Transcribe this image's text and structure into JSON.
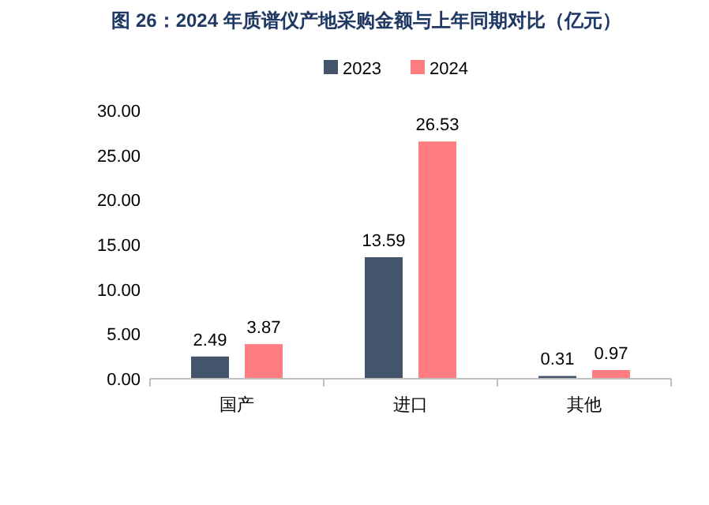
{
  "chart_data": {
    "type": "bar",
    "title": "图 26：2024 年质谱仪产地采购金额与上年同期对比（亿元）",
    "categories": [
      "国产",
      "进口",
      "其他"
    ],
    "series": [
      {
        "name": "2023",
        "color": "#44546a",
        "values": [
          2.49,
          13.59,
          0.31
        ]
      },
      {
        "name": "2024",
        "color": "#ff7c80",
        "values": [
          3.87,
          26.53,
          0.97
        ]
      }
    ],
    "ylim": [
      0,
      30
    ],
    "yticks": [
      {
        "value": 0,
        "label": "0.00"
      },
      {
        "value": 5,
        "label": "5.00"
      },
      {
        "value": 10,
        "label": "10.00"
      },
      {
        "value": 15,
        "label": "15.00"
      },
      {
        "value": 20,
        "label": "20.00"
      },
      {
        "value": 25,
        "label": "25.00"
      },
      {
        "value": 30,
        "label": "30.00"
      }
    ],
    "data_labels": true,
    "legend": "top",
    "grid": false
  }
}
